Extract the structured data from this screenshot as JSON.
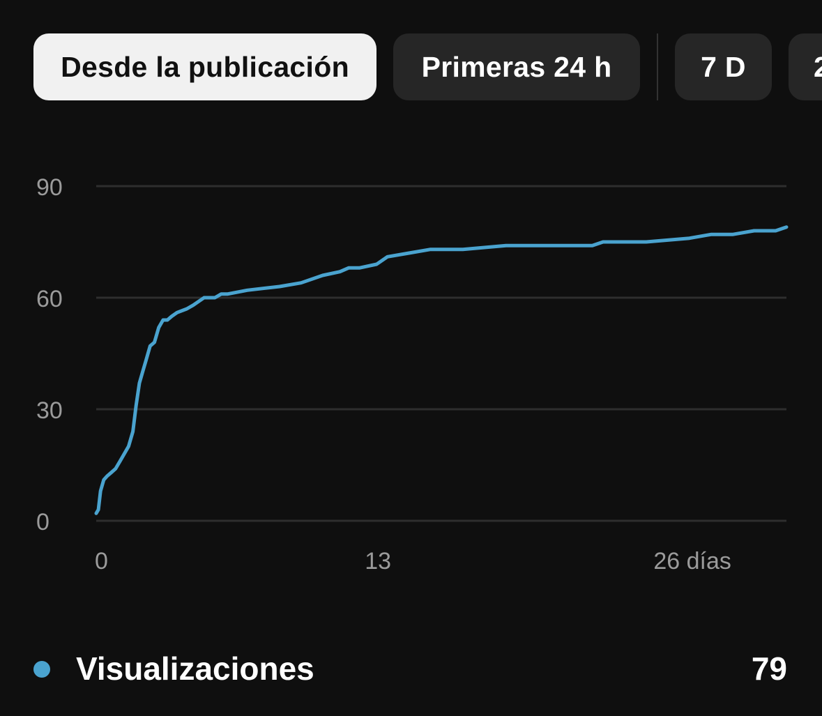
{
  "tabs": [
    {
      "label": "Desde la publicación",
      "active": true
    },
    {
      "label": "Primeras 24 h",
      "active": false
    },
    {
      "label": "7 D",
      "active": false
    },
    {
      "label": "2",
      "active": false
    }
  ],
  "colors": {
    "background": "#0f0f0f",
    "line": "#4aa3cf",
    "grid": "#2e2e2e",
    "tick_text": "#9b9b9b"
  },
  "chart_data": {
    "type": "line",
    "grid": "horizontal",
    "ylim": [
      0,
      90
    ],
    "xlim": [
      0,
      32
    ],
    "y_ticks": [
      {
        "value": 0,
        "label": "0"
      },
      {
        "value": 30,
        "label": "30"
      },
      {
        "value": 60,
        "label": "60"
      },
      {
        "value": 90,
        "label": "90"
      }
    ],
    "x_ticks": [
      {
        "value": 0,
        "label": "0"
      },
      {
        "value": 13,
        "label": "13"
      },
      {
        "value": 26,
        "label": "26 días"
      }
    ],
    "series": [
      {
        "name": "Visualizaciones",
        "color": "#4aa3cf",
        "x": [
          0,
          0.1,
          0.2,
          0.35,
          0.5,
          0.7,
          0.9,
          1.1,
          1.3,
          1.5,
          1.7,
          1.85,
          2.0,
          2.15,
          2.3,
          2.5,
          2.7,
          2.9,
          3.1,
          3.3,
          3.5,
          3.75,
          4.2,
          4.5,
          5.0,
          5.5,
          5.8,
          6.1,
          7.0,
          8.5,
          9.5,
          10.5,
          11.3,
          11.7,
          12.2,
          13.0,
          13.5,
          14.5,
          15.5,
          17.0,
          19.0,
          21.0,
          23.0,
          23.5,
          24.0,
          25.5,
          27.5,
          28.5,
          29.5,
          30.5,
          31.0,
          31.5,
          32.0
        ],
        "values": [
          2,
          3,
          8,
          11,
          12,
          13,
          14,
          16,
          18,
          20,
          24,
          31,
          37,
          40,
          43,
          47,
          48,
          52,
          54,
          54,
          55,
          56,
          57,
          58,
          60,
          60,
          61,
          61,
          62,
          63,
          64,
          66,
          67,
          68,
          68,
          69,
          71,
          72,
          73,
          73,
          74,
          74,
          74,
          75,
          75,
          75,
          76,
          77,
          77,
          78,
          78,
          78,
          79
        ]
      }
    ]
  },
  "legend": {
    "label": "Visualizaciones",
    "value": "79"
  }
}
